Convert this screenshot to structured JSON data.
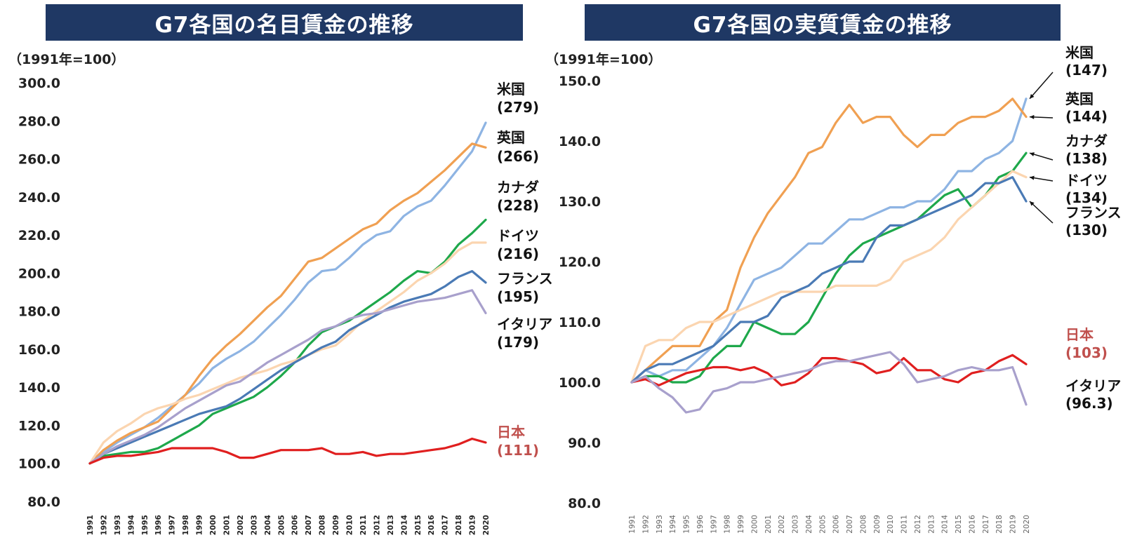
{
  "chart_data": [
    {
      "type": "line",
      "title": "G7各国の名目賃金の推移",
      "ylabel": "（1991年=100）",
      "ylim": [
        80,
        300
      ],
      "yticks": [
        "80.0",
        "100.0",
        "120.0",
        "140.0",
        "160.0",
        "180.0",
        "200.0",
        "220.0",
        "240.0",
        "260.0",
        "280.0",
        "300.0"
      ],
      "categories": [
        "1991",
        "1992",
        "1993",
        "1994",
        "1995",
        "1996",
        "1997",
        "1998",
        "1999",
        "2000",
        "2001",
        "2002",
        "2003",
        "2004",
        "2005",
        "2006",
        "2007",
        "2008",
        "2009",
        "2010",
        "2011",
        "2012",
        "2013",
        "2014",
        "2015",
        "2016",
        "2017",
        "2018",
        "2019",
        "2020"
      ],
      "series": [
        {
          "name": "米国",
          "color": "#8eb4e3",
          "label_name": "米国",
          "label_value": "(279)",
          "values": [
            100,
            106,
            111,
            115,
            119,
            124,
            130,
            136,
            142,
            150,
            155,
            159,
            164,
            171,
            178,
            186,
            195,
            201,
            202,
            208,
            215,
            220,
            222,
            230,
            235,
            238,
            246,
            255,
            264,
            279
          ]
        },
        {
          "name": "英国",
          "color": "#f0a052",
          "label_name": "英国",
          "label_value": "(266)",
          "values": [
            100,
            107,
            112,
            116,
            119,
            122,
            129,
            136,
            146,
            155,
            162,
            168,
            175,
            182,
            188,
            197,
            206,
            208,
            213,
            218,
            223,
            226,
            233,
            238,
            242,
            248,
            254,
            261,
            268,
            266
          ]
        },
        {
          "name": "カナダ",
          "color": "#1ea84b",
          "label_name": "カナダ",
          "label_value": "(228)",
          "values": [
            100,
            104,
            105,
            106,
            106,
            108,
            112,
            116,
            120,
            126,
            129,
            132,
            135,
            140,
            146,
            153,
            162,
            169,
            172,
            175,
            180,
            185,
            190,
            196,
            201,
            200,
            206,
            215,
            221,
            228
          ]
        },
        {
          "name": "ドイツ",
          "color": "#fbd5b0",
          "label_name": "ドイツ",
          "label_value": "(216)",
          "values": [
            100,
            111,
            117,
            121,
            126,
            129,
            131,
            134,
            136,
            139,
            142,
            145,
            147,
            149,
            152,
            154,
            157,
            160,
            162,
            168,
            175,
            180,
            185,
            190,
            196,
            200,
            205,
            212,
            216,
            216
          ]
        },
        {
          "name": "フランス",
          "color": "#4a7ab5",
          "label_name": "フランス",
          "label_value": "(195)",
          "values": [
            100,
            105,
            108,
            111,
            114,
            117,
            120,
            123,
            126,
            128,
            130,
            134,
            139,
            144,
            149,
            153,
            157,
            161,
            164,
            170,
            174,
            178,
            182,
            185,
            187,
            189,
            193,
            198,
            201,
            195
          ]
        },
        {
          "name": "イタリア",
          "color": "#a8a0cc",
          "label_name": "イタリア",
          "label_value": "(179)",
          "values": [
            100,
            105,
            109,
            112,
            115,
            119,
            124,
            129,
            133,
            137,
            141,
            143,
            148,
            153,
            157,
            161,
            165,
            170,
            172,
            176,
            178,
            179,
            181,
            183,
            185,
            186,
            187,
            189,
            191,
            179
          ]
        },
        {
          "name": "日本",
          "color": "#e01f1f",
          "label_name": "日本",
          "label_value": "(111)",
          "values": [
            100,
            103,
            104,
            104,
            105,
            106,
            108,
            108,
            108,
            108,
            106,
            103,
            103,
            105,
            107,
            107,
            107,
            108,
            105,
            105,
            106,
            104,
            105,
            105,
            106,
            107,
            108,
            110,
            113,
            111
          ]
        }
      ]
    },
    {
      "type": "line",
      "title": "G7各国の実質賃金の推移",
      "ylabel": "（1991年=100）",
      "ylim": [
        80,
        150
      ],
      "yticks": [
        "80.0",
        "90.0",
        "100.0",
        "110.0",
        "120.0",
        "130.0",
        "140.0",
        "150.0"
      ],
      "categories": [
        "1991",
        "1992",
        "1993",
        "1994",
        "1995",
        "1996",
        "1997",
        "1998",
        "1999",
        "2000",
        "2001",
        "2002",
        "2003",
        "2004",
        "2005",
        "2006",
        "2007",
        "2008",
        "2009",
        "2010",
        "2011",
        "2012",
        "2013",
        "2014",
        "2015",
        "2016",
        "2017",
        "2018",
        "2019",
        "2020"
      ],
      "series": [
        {
          "name": "米国",
          "color": "#8eb4e3",
          "label_name": "米国",
          "label_value": "(147)",
          "values": [
            100,
            102,
            101,
            102,
            102,
            104,
            106,
            109,
            113,
            117,
            118,
            119,
            121,
            123,
            123,
            125,
            127,
            127,
            128,
            129,
            129,
            130,
            130,
            132,
            135,
            135,
            137,
            138,
            140,
            147
          ]
        },
        {
          "name": "英国",
          "color": "#f0a052",
          "label_name": "英国",
          "label_value": "(144)",
          "values": [
            100,
            102,
            104,
            106,
            106,
            106,
            110,
            112,
            119,
            124,
            128,
            131,
            134,
            138,
            139,
            143,
            146,
            143,
            144,
            144,
            141,
            139,
            141,
            141,
            143,
            144,
            144,
            145,
            147,
            144
          ]
        },
        {
          "name": "カナダ",
          "color": "#1ea84b",
          "label_name": "カナダ",
          "label_value": "(138)",
          "values": [
            100,
            101,
            101,
            100,
            100,
            101,
            104,
            106,
            106,
            110,
            109,
            108,
            108,
            110,
            114,
            118,
            121,
            123,
            124,
            125,
            126,
            127,
            129,
            131,
            132,
            129,
            131,
            134,
            135,
            138
          ]
        },
        {
          "name": "ドイツ",
          "color": "#fbd5b0",
          "label_name": "ドイツ",
          "label_value": "(134)",
          "values": [
            100,
            106,
            107,
            107,
            109,
            110,
            110,
            111,
            112,
            113,
            114,
            115,
            115,
            115,
            115,
            116,
            116,
            116,
            116,
            117,
            120,
            121,
            122,
            124,
            127,
            129,
            131,
            133,
            135,
            134
          ]
        },
        {
          "name": "フランス",
          "color": "#4a7ab5",
          "label_name": "フランス",
          "label_value": "(130)",
          "values": [
            100,
            102,
            103,
            103,
            104,
            105,
            106,
            108,
            110,
            110,
            111,
            114,
            115,
            116,
            118,
            119,
            120,
            120,
            124,
            126,
            126,
            127,
            128,
            129,
            130,
            131,
            133,
            133,
            134,
            130
          ]
        },
        {
          "name": "日本",
          "color": "#e01f1f",
          "label_name": "日本",
          "label_value": "(103)",
          "values": [
            100,
            100.5,
            99.5,
            100.5,
            101.5,
            102,
            102.5,
            102.5,
            102,
            102.5,
            101.5,
            99.5,
            100,
            101.5,
            104,
            104,
            103.5,
            103,
            101.5,
            102,
            104,
            102,
            102,
            100.5,
            100,
            101.5,
            102,
            103.5,
            104.5,
            103
          ]
        },
        {
          "name": "イタリア",
          "color": "#a8a0cc",
          "label_name": "イタリア",
          "label_value": "(96.3)",
          "values": [
            100,
            101,
            99,
            97.5,
            95,
            95.5,
            98.5,
            99,
            100,
            100,
            100.5,
            101,
            101.5,
            102,
            103,
            103.5,
            103.5,
            104,
            104.5,
            105,
            103,
            100,
            100.5,
            101,
            102,
            102.5,
            102,
            102,
            102.5,
            96.3
          ]
        }
      ]
    }
  ]
}
